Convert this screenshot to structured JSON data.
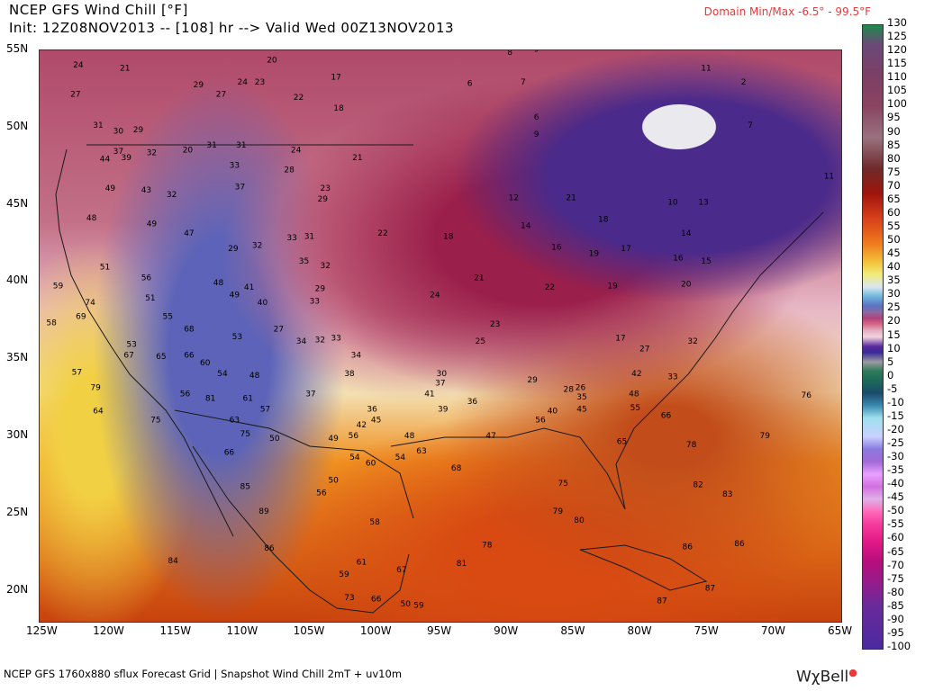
{
  "header": {
    "title": "NCEP GFS Wind Chill [°F]",
    "init": "Init: 12Z08NOV2013 -- [108] hr --> Valid Wed 00Z13NOV2013",
    "domain": "Domain Min/Max  -6.5°  -  99.5°F"
  },
  "axes": {
    "x_ticks": [
      "125W",
      "120W",
      "115W",
      "110W",
      "105W",
      "100W",
      "95W",
      "90W",
      "85W",
      "80W",
      "75W",
      "70W",
      "65W"
    ],
    "y_ticks": [
      "55N",
      "50N",
      "45N",
      "40N",
      "35N",
      "30N",
      "25N",
      "20N"
    ]
  },
  "colorbar": {
    "labels": [
      "130",
      "125",
      "120",
      "115",
      "110",
      "105",
      "100",
      "95",
      "90",
      "85",
      "80",
      "75",
      "70",
      "65",
      "60",
      "55",
      "50",
      "45",
      "40",
      "35",
      "30",
      "25",
      "20",
      "15",
      "10",
      "5",
      "0",
      "-5",
      "-10",
      "-15",
      "-20",
      "-25",
      "-30",
      "-35",
      "-40",
      "-45",
      "-50",
      "-55",
      "-60",
      "-65",
      "-70",
      "-75",
      "-80",
      "-85",
      "-90",
      "-95",
      "-100"
    ]
  },
  "map_values": [
    {
      "t": "24",
      "lon": -122.5,
      "lat": 53.9
    },
    {
      "t": "21",
      "lon": -119.0,
      "lat": 53.7
    },
    {
      "t": "27",
      "lon": -122.7,
      "lat": 52.0
    },
    {
      "t": "29",
      "lon": -113.5,
      "lat": 52.6
    },
    {
      "t": "27",
      "lon": -111.8,
      "lat": 52.0
    },
    {
      "t": "24",
      "lon": -110.2,
      "lat": 52.8
    },
    {
      "t": "23",
      "lon": -108.9,
      "lat": 52.8
    },
    {
      "t": "20",
      "lon": -108.0,
      "lat": 54.2
    },
    {
      "t": "22",
      "lon": -106.0,
      "lat": 51.8
    },
    {
      "t": "17",
      "lon": -103.2,
      "lat": 53.1
    },
    {
      "t": "18",
      "lon": -103.0,
      "lat": 51.1
    },
    {
      "t": "17",
      "lon": -101.0,
      "lat": 55.3
    },
    {
      "t": "8",
      "lon": -90.0,
      "lat": 54.7
    },
    {
      "t": "9",
      "lon": -88.0,
      "lat": 54.9
    },
    {
      "t": "6",
      "lon": -93.0,
      "lat": 52.7
    },
    {
      "t": "7",
      "lon": -89.0,
      "lat": 52.8
    },
    {
      "t": "6",
      "lon": -88.0,
      "lat": 50.5
    },
    {
      "t": "9",
      "lon": -88.0,
      "lat": 49.4
    },
    {
      "t": "11",
      "lon": -75.5,
      "lat": 53.7
    },
    {
      "t": "2",
      "lon": -72.5,
      "lat": 52.8
    },
    {
      "t": "7",
      "lon": -72.0,
      "lat": 50.0
    },
    {
      "t": "12",
      "lon": -65.0,
      "lat": 48.6
    },
    {
      "t": "11",
      "lon": -66.3,
      "lat": 46.7
    },
    {
      "t": "31",
      "lon": -121.0,
      "lat": 50.0
    },
    {
      "t": "30",
      "lon": -119.5,
      "lat": 49.6
    },
    {
      "t": "29",
      "lon": -118.0,
      "lat": 49.7
    },
    {
      "t": "37",
      "lon": -119.5,
      "lat": 48.3
    },
    {
      "t": "44",
      "lon": -120.5,
      "lat": 47.8
    },
    {
      "t": "39",
      "lon": -118.9,
      "lat": 47.9
    },
    {
      "t": "32",
      "lon": -117.0,
      "lat": 48.2
    },
    {
      "t": "20",
      "lon": -114.3,
      "lat": 48.4
    },
    {
      "t": "31",
      "lon": -112.5,
      "lat": 48.7
    },
    {
      "t": "31",
      "lon": -110.3,
      "lat": 48.7
    },
    {
      "t": "33",
      "lon": -110.8,
      "lat": 47.4
    },
    {
      "t": "24",
      "lon": -106.2,
      "lat": 48.4
    },
    {
      "t": "28",
      "lon": -106.7,
      "lat": 47.1
    },
    {
      "t": "21",
      "lon": -101.6,
      "lat": 47.9
    },
    {
      "t": "23",
      "lon": -104.0,
      "lat": 45.9
    },
    {
      "t": "29",
      "lon": -104.2,
      "lat": 45.2
    },
    {
      "t": "37",
      "lon": -110.4,
      "lat": 46.0
    },
    {
      "t": "49",
      "lon": -120.1,
      "lat": 45.9
    },
    {
      "t": "43",
      "lon": -117.4,
      "lat": 45.8
    },
    {
      "t": "32",
      "lon": -115.5,
      "lat": 45.5
    },
    {
      "t": "48",
      "lon": -121.5,
      "lat": 44.0
    },
    {
      "t": "49",
      "lon": -117.0,
      "lat": 43.6
    },
    {
      "t": "47",
      "lon": -114.2,
      "lat": 43.0
    },
    {
      "t": "22",
      "lon": -99.7,
      "lat": 43.0
    },
    {
      "t": "33",
      "lon": -106.5,
      "lat": 42.7
    },
    {
      "t": "31",
      "lon": -105.2,
      "lat": 42.8
    },
    {
      "t": "32",
      "lon": -109.1,
      "lat": 42.2
    },
    {
      "t": "29",
      "lon": -110.9,
      "lat": 42.0
    },
    {
      "t": "35",
      "lon": -105.6,
      "lat": 41.2
    },
    {
      "t": "32",
      "lon": -104.0,
      "lat": 40.9
    },
    {
      "t": "18",
      "lon": -94.8,
      "lat": 42.8
    },
    {
      "t": "14",
      "lon": -89.0,
      "lat": 43.5
    },
    {
      "t": "16",
      "lon": -86.7,
      "lat": 42.1
    },
    {
      "t": "19",
      "lon": -83.9,
      "lat": 41.7
    },
    {
      "t": "17",
      "lon": -81.5,
      "lat": 42.0
    },
    {
      "t": "16",
      "lon": -77.6,
      "lat": 41.4
    },
    {
      "t": "15",
      "lon": -75.5,
      "lat": 41.2
    },
    {
      "t": "12",
      "lon": -89.9,
      "lat": 45.3
    },
    {
      "t": "21",
      "lon": -85.6,
      "lat": 45.3
    },
    {
      "t": "18",
      "lon": -83.2,
      "lat": 43.9
    },
    {
      "t": "14",
      "lon": -77.0,
      "lat": 43.0
    },
    {
      "t": "10",
      "lon": -78.0,
      "lat": 45.0
    },
    {
      "t": "13",
      "lon": -75.7,
      "lat": 45.0
    },
    {
      "t": "51",
      "lon": -120.5,
      "lat": 40.8
    },
    {
      "t": "59",
      "lon": -124.0,
      "lat": 39.6
    },
    {
      "t": "56",
      "lon": -117.4,
      "lat": 40.1
    },
    {
      "t": "51",
      "lon": -117.1,
      "lat": 38.8
    },
    {
      "t": "48",
      "lon": -112.0,
      "lat": 39.8
    },
    {
      "t": "49",
      "lon": -110.8,
      "lat": 39.0
    },
    {
      "t": "41",
      "lon": -109.7,
      "lat": 39.5
    },
    {
      "t": "40",
      "lon": -108.7,
      "lat": 38.5
    },
    {
      "t": "29",
      "lon": -104.4,
      "lat": 39.4
    },
    {
      "t": "33",
      "lon": -104.8,
      "lat": 38.6
    },
    {
      "t": "24",
      "lon": -95.8,
      "lat": 39.0
    },
    {
      "t": "21",
      "lon": -92.5,
      "lat": 40.1
    },
    {
      "t": "22",
      "lon": -87.2,
      "lat": 39.5
    },
    {
      "t": "19",
      "lon": -82.5,
      "lat": 39.6
    },
    {
      "t": "20",
      "lon": -77.0,
      "lat": 39.7
    },
    {
      "t": "74",
      "lon": -121.6,
      "lat": 38.5
    },
    {
      "t": "69",
      "lon": -122.3,
      "lat": 37.6
    },
    {
      "t": "58",
      "lon": -124.5,
      "lat": 37.2
    },
    {
      "t": "55",
      "lon": -115.8,
      "lat": 37.6
    },
    {
      "t": "68",
      "lon": -114.2,
      "lat": 36.8
    },
    {
      "t": "53",
      "lon": -110.6,
      "lat": 36.3
    },
    {
      "t": "27",
      "lon": -107.5,
      "lat": 36.8
    },
    {
      "t": "34",
      "lon": -105.8,
      "lat": 36.0
    },
    {
      "t": "32",
      "lon": -104.4,
      "lat": 36.1
    },
    {
      "t": "33",
      "lon": -103.2,
      "lat": 36.2
    },
    {
      "t": "23",
      "lon": -91.3,
      "lat": 37.1
    },
    {
      "t": "25",
      "lon": -92.4,
      "lat": 36.0
    },
    {
      "t": "17",
      "lon": -81.9,
      "lat": 36.2
    },
    {
      "t": "27",
      "lon": -80.1,
      "lat": 35.5
    },
    {
      "t": "32",
      "lon": -76.5,
      "lat": 36.0
    },
    {
      "t": "53",
      "lon": -118.5,
      "lat": 35.8
    },
    {
      "t": "67",
      "lon": -118.7,
      "lat": 35.1
    },
    {
      "t": "65",
      "lon": -116.3,
      "lat": 35.0
    },
    {
      "t": "66",
      "lon": -114.2,
      "lat": 35.1
    },
    {
      "t": "60",
      "lon": -113.0,
      "lat": 34.6
    },
    {
      "t": "57",
      "lon": -122.6,
      "lat": 34.0
    },
    {
      "t": "54",
      "lon": -111.7,
      "lat": 33.9
    },
    {
      "t": "48",
      "lon": -109.3,
      "lat": 33.8
    },
    {
      "t": "34",
      "lon": -101.7,
      "lat": 35.1
    },
    {
      "t": "38",
      "lon": -102.2,
      "lat": 33.9
    },
    {
      "t": "30",
      "lon": -95.3,
      "lat": 33.9
    },
    {
      "t": "37",
      "lon": -95.4,
      "lat": 33.3
    },
    {
      "t": "29",
      "lon": -88.5,
      "lat": 33.5
    },
    {
      "t": "28",
      "lon": -85.8,
      "lat": 32.9
    },
    {
      "t": "26",
      "lon": -84.9,
      "lat": 33.0
    },
    {
      "t": "35",
      "lon": -84.8,
      "lat": 32.4
    },
    {
      "t": "48",
      "lon": -80.9,
      "lat": 32.6
    },
    {
      "t": "33",
      "lon": -78.0,
      "lat": 33.7
    },
    {
      "t": "42",
      "lon": -80.7,
      "lat": 33.9
    },
    {
      "t": "41",
      "lon": -96.2,
      "lat": 32.6
    },
    {
      "t": "36",
      "lon": -93.0,
      "lat": 32.1
    },
    {
      "t": "39",
      "lon": -95.2,
      "lat": 31.6
    },
    {
      "t": "76",
      "lon": -68.0,
      "lat": 32.5
    },
    {
      "t": "79",
      "lon": -121.2,
      "lat": 33.0
    },
    {
      "t": "64",
      "lon": -121.0,
      "lat": 31.5
    },
    {
      "t": "56",
      "lon": -114.5,
      "lat": 32.6
    },
    {
      "t": "81",
      "lon": -112.6,
      "lat": 32.3
    },
    {
      "t": "61",
      "lon": -109.8,
      "lat": 32.3
    },
    {
      "t": "57",
      "lon": -108.5,
      "lat": 31.6
    },
    {
      "t": "37",
      "lon": -105.1,
      "lat": 32.6
    },
    {
      "t": "36",
      "lon": -100.5,
      "lat": 31.6
    },
    {
      "t": "55",
      "lon": -80.8,
      "lat": 31.7
    },
    {
      "t": "66",
      "lon": -78.5,
      "lat": 31.2
    },
    {
      "t": "40",
      "lon": -87.0,
      "lat": 31.5
    },
    {
      "t": "45",
      "lon": -84.8,
      "lat": 31.6
    },
    {
      "t": "75",
      "lon": -116.7,
      "lat": 30.9
    },
    {
      "t": "63",
      "lon": -110.8,
      "lat": 30.9
    },
    {
      "t": "75",
      "lon": -110.0,
      "lat": 30.0
    },
    {
      "t": "50",
      "lon": -107.8,
      "lat": 29.7
    },
    {
      "t": "42",
      "lon": -101.3,
      "lat": 30.6
    },
    {
      "t": "45",
      "lon": -100.2,
      "lat": 30.9
    },
    {
      "t": "49",
      "lon": -103.4,
      "lat": 29.7
    },
    {
      "t": "56",
      "lon": -101.9,
      "lat": 29.9
    },
    {
      "t": "48",
      "lon": -97.7,
      "lat": 29.9
    },
    {
      "t": "47",
      "lon": -91.6,
      "lat": 29.9
    },
    {
      "t": "56",
      "lon": -87.9,
      "lat": 30.9
    },
    {
      "t": "65",
      "lon": -81.8,
      "lat": 29.5
    },
    {
      "t": "78",
      "lon": -76.6,
      "lat": 29.3
    },
    {
      "t": "79",
      "lon": -71.1,
      "lat": 29.9
    },
    {
      "t": "66",
      "lon": -111.2,
      "lat": 28.8
    },
    {
      "t": "54",
      "lon": -101.8,
      "lat": 28.5
    },
    {
      "t": "63",
      "lon": -96.8,
      "lat": 28.9
    },
    {
      "t": "54",
      "lon": -98.4,
      "lat": 28.5
    },
    {
      "t": "60",
      "lon": -100.6,
      "lat": 28.1
    },
    {
      "t": "68",
      "lon": -94.2,
      "lat": 27.8
    },
    {
      "t": "75",
      "lon": -86.2,
      "lat": 26.8
    },
    {
      "t": "82",
      "lon": -76.1,
      "lat": 26.7
    },
    {
      "t": "83",
      "lon": -73.9,
      "lat": 26.1
    },
    {
      "t": "85",
      "lon": -110.0,
      "lat": 26.6
    },
    {
      "t": "50",
      "lon": -103.4,
      "lat": 27.0
    },
    {
      "t": "56",
      "lon": -104.3,
      "lat": 26.2
    },
    {
      "t": "89",
      "lon": -108.6,
      "lat": 25.0
    },
    {
      "t": "79",
      "lon": -86.6,
      "lat": 25.0
    },
    {
      "t": "58",
      "lon": -100.3,
      "lat": 24.3
    },
    {
      "t": "80",
      "lon": -85.0,
      "lat": 24.4
    },
    {
      "t": "86",
      "lon": -108.2,
      "lat": 22.6
    },
    {
      "t": "78",
      "lon": -91.9,
      "lat": 22.8
    },
    {
      "t": "86",
      "lon": -76.9,
      "lat": 22.7
    },
    {
      "t": "86",
      "lon": -73.0,
      "lat": 22.9
    },
    {
      "t": "84",
      "lon": -115.4,
      "lat": 21.8
    },
    {
      "t": "61",
      "lon": -101.3,
      "lat": 21.7
    },
    {
      "t": "81",
      "lon": -93.8,
      "lat": 21.6
    },
    {
      "t": "67",
      "lon": -98.3,
      "lat": 21.2
    },
    {
      "t": "59",
      "lon": -102.6,
      "lat": 20.9
    },
    {
      "t": "87",
      "lon": -75.2,
      "lat": 20.0
    },
    {
      "t": "73",
      "lon": -102.2,
      "lat": 19.4
    },
    {
      "t": "66",
      "lon": -100.2,
      "lat": 19.3
    },
    {
      "t": "50",
      "lon": -98.0,
      "lat": 19.0
    },
    {
      "t": "59",
      "lon": -97.0,
      "lat": 18.9
    },
    {
      "t": "87",
      "lon": -78.8,
      "lat": 19.2
    }
  ],
  "footer": "NCEP GFS 1760x880 sflux Forecast Grid | Snapshot Wind Chill 2mT + uv10m",
  "logo": "WχBell"
}
